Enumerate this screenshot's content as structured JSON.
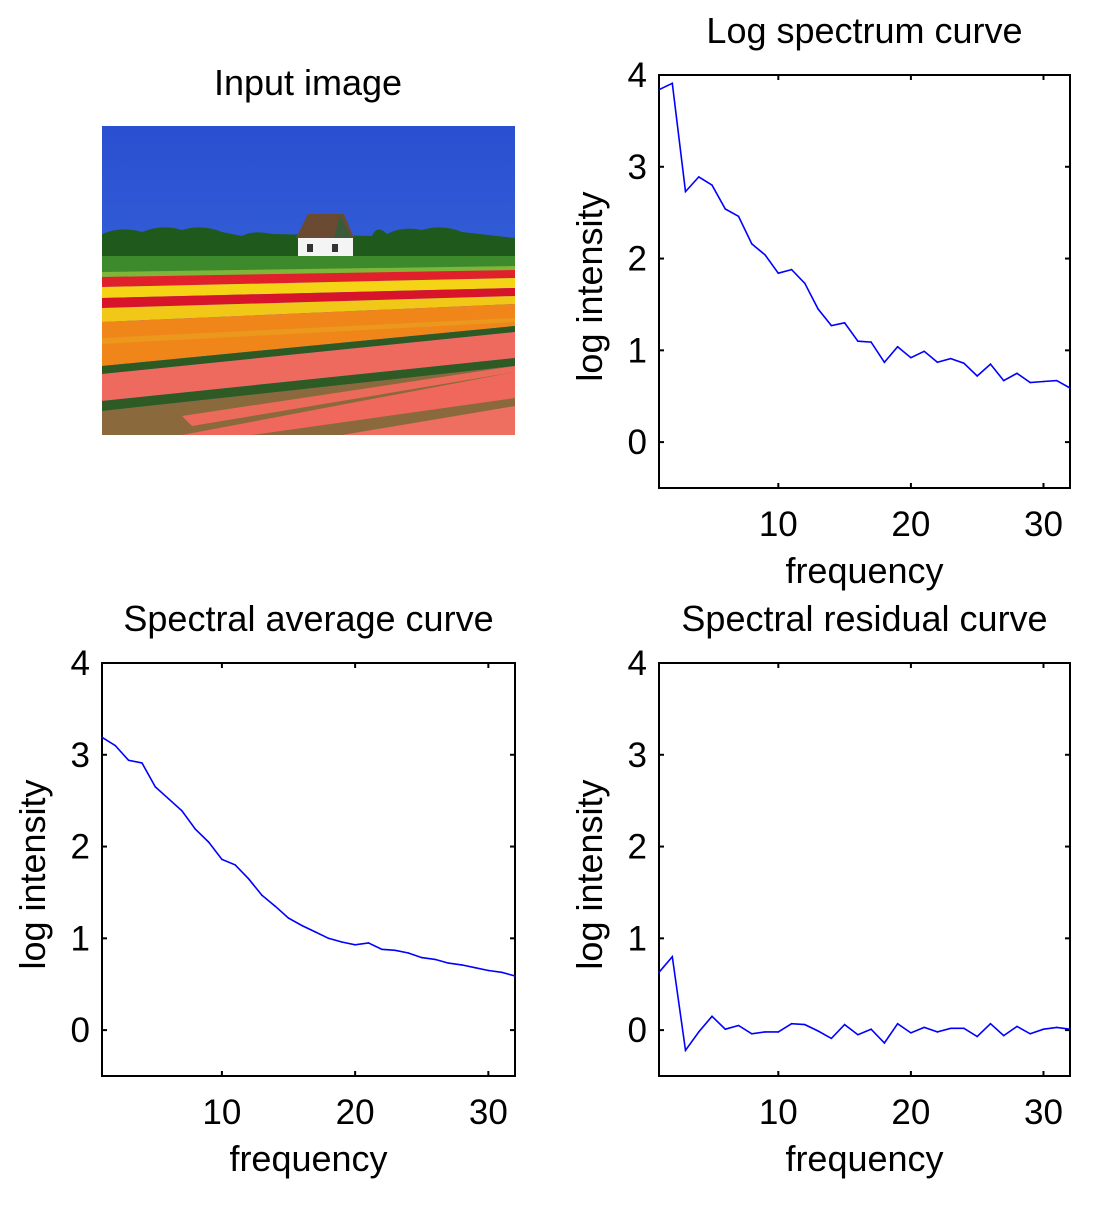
{
  "input_image": {
    "title": "Input image"
  },
  "colors": {
    "line": "#0000ff",
    "axes": "#000000"
  },
  "chart_data": [
    {
      "type": "line",
      "title": "Log spectrum curve",
      "xlabel": "frequency",
      "ylabel": "log intensity",
      "xlim": [
        1,
        32
      ],
      "ylim": [
        -0.5,
        4
      ],
      "xticks": [
        10,
        20,
        30
      ],
      "yticks": [
        0,
        1,
        2,
        3,
        4
      ],
      "grid": false,
      "box": true,
      "x": [
        1,
        2,
        3,
        4,
        5,
        6,
        7,
        8,
        9,
        10,
        11,
        12,
        13,
        14,
        15,
        16,
        17,
        18,
        19,
        20,
        21,
        22,
        23,
        24,
        25,
        26,
        27,
        28,
        29,
        30,
        31,
        32
      ],
      "values": [
        3.84,
        3.91,
        2.73,
        2.89,
        2.8,
        2.54,
        2.46,
        2.16,
        2.04,
        1.84,
        1.88,
        1.73,
        1.45,
        1.27,
        1.3,
        1.1,
        1.09,
        0.87,
        1.04,
        0.92,
        0.99,
        0.87,
        0.91,
        0.86,
        0.72,
        0.85,
        0.67,
        0.75,
        0.65,
        0.66,
        0.67,
        0.59
      ]
    },
    {
      "type": "line",
      "title": "Spectral average curve",
      "xlabel": "frequency",
      "ylabel": "log intensity",
      "xlim": [
        1,
        32
      ],
      "ylim": [
        -0.5,
        4
      ],
      "xticks": [
        10,
        20,
        30
      ],
      "yticks": [
        0,
        1,
        2,
        3,
        4
      ],
      "grid": false,
      "box": true,
      "x": [
        1,
        2,
        3,
        4,
        5,
        6,
        7,
        8,
        9,
        10,
        11,
        12,
        13,
        14,
        15,
        16,
        17,
        18,
        19,
        20,
        21,
        22,
        23,
        24,
        25,
        26,
        27,
        28,
        29,
        30,
        31,
        32
      ],
      "values": [
        3.19,
        3.1,
        2.94,
        2.91,
        2.65,
        2.52,
        2.39,
        2.19,
        2.05,
        1.86,
        1.8,
        1.65,
        1.47,
        1.35,
        1.22,
        1.14,
        1.07,
        1.0,
        0.96,
        0.93,
        0.95,
        0.88,
        0.87,
        0.84,
        0.79,
        0.77,
        0.73,
        0.71,
        0.68,
        0.65,
        0.63,
        0.59
      ]
    },
    {
      "type": "line",
      "title": "Spectral residual curve",
      "xlabel": "frequency",
      "ylabel": "log intensity",
      "xlim": [
        1,
        32
      ],
      "ylim": [
        -0.5,
        4
      ],
      "xticks": [
        10,
        20,
        30
      ],
      "yticks": [
        0,
        1,
        2,
        3,
        4
      ],
      "grid": false,
      "box": true,
      "x": [
        1,
        2,
        3,
        4,
        5,
        6,
        7,
        8,
        9,
        10,
        11,
        12,
        13,
        14,
        15,
        16,
        17,
        18,
        19,
        20,
        21,
        22,
        23,
        24,
        25,
        26,
        27,
        28,
        29,
        30,
        31,
        32
      ],
      "values": [
        0.63,
        0.8,
        -0.22,
        -0.02,
        0.15,
        0.01,
        0.05,
        -0.04,
        -0.02,
        -0.02,
        0.07,
        0.06,
        -0.01,
        -0.09,
        0.06,
        -0.05,
        0.01,
        -0.14,
        0.07,
        -0.03,
        0.03,
        -0.02,
        0.02,
        0.02,
        -0.07,
        0.07,
        -0.06,
        0.04,
        -0.04,
        0.01,
        0.03,
        0.01
      ]
    }
  ]
}
